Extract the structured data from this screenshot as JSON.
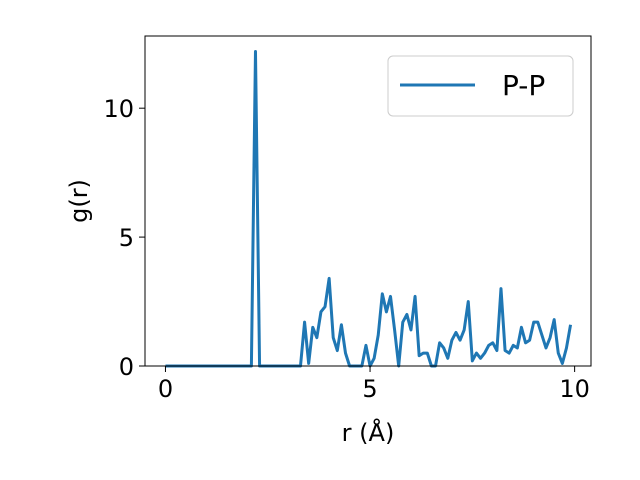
{
  "chart_data": {
    "type": "line",
    "title": "",
    "xlabel": "r (Å)",
    "ylabel": "g(r)",
    "xlim": [
      -0.5,
      10.4
    ],
    "ylim": [
      0,
      12.8
    ],
    "xticks": [
      0,
      5,
      10
    ],
    "yticks": [
      0,
      5,
      10
    ],
    "grid": false,
    "legend": {
      "position": "top-right",
      "entries": [
        "P-P"
      ]
    },
    "colors": {
      "series": "#1f77b4",
      "axes": "#000000",
      "background": "#ffffff"
    },
    "series": [
      {
        "name": "P-P",
        "x": [
          0.0,
          0.1,
          0.2,
          0.3,
          0.4,
          0.5,
          0.6,
          0.7,
          0.8,
          0.9,
          1.0,
          1.1,
          1.2,
          1.3,
          1.4,
          1.5,
          1.6,
          1.7,
          1.8,
          1.9,
          2.0,
          2.1,
          2.2,
          2.3,
          2.4,
          2.5,
          2.6,
          2.7,
          2.8,
          2.9,
          3.0,
          3.1,
          3.2,
          3.3,
          3.4,
          3.5,
          3.6,
          3.7,
          3.8,
          3.9,
          4.0,
          4.1,
          4.2,
          4.3,
          4.4,
          4.5,
          4.6,
          4.7,
          4.8,
          4.9,
          5.0,
          5.1,
          5.2,
          5.3,
          5.4,
          5.5,
          5.6,
          5.7,
          5.8,
          5.9,
          6.0,
          6.1,
          6.2,
          6.3,
          6.4,
          6.5,
          6.6,
          6.7,
          6.8,
          6.9,
          7.0,
          7.1,
          7.2,
          7.3,
          7.4,
          7.5,
          7.6,
          7.7,
          7.8,
          7.9,
          8.0,
          8.1,
          8.2,
          8.3,
          8.4,
          8.5,
          8.6,
          8.7,
          8.8,
          8.9,
          9.0,
          9.1,
          9.2,
          9.3,
          9.4,
          9.5,
          9.6,
          9.7,
          9.8,
          9.9
        ],
        "y": [
          0,
          0,
          0,
          0,
          0,
          0,
          0,
          0,
          0,
          0,
          0,
          0,
          0,
          0,
          0,
          0,
          0,
          0,
          0,
          0,
          0,
          0,
          12.2,
          0,
          0,
          0,
          0,
          0,
          0,
          0,
          0,
          0,
          0,
          0,
          1.7,
          0.1,
          1.5,
          1.1,
          2.1,
          2.3,
          3.4,
          1.1,
          0.6,
          1.6,
          0.5,
          0,
          0,
          0,
          0,
          0.8,
          0,
          0.3,
          1.2,
          2.8,
          2.1,
          2.7,
          1.4,
          0,
          1.7,
          2.0,
          1.4,
          2.7,
          0.4,
          0.5,
          0.5,
          0,
          0,
          0.9,
          0.7,
          0.3,
          1.0,
          1.3,
          1.0,
          1.4,
          2.5,
          0.2,
          0.5,
          0.3,
          0.5,
          0.8,
          0.9,
          0.6,
          3.0,
          0.6,
          0.5,
          0.8,
          0.7,
          1.5,
          0.9,
          1.0,
          1.7,
          1.7,
          1.2,
          0.7,
          1.1,
          1.8,
          0.5,
          0.1,
          0.7,
          1.6
        ]
      }
    ]
  }
}
